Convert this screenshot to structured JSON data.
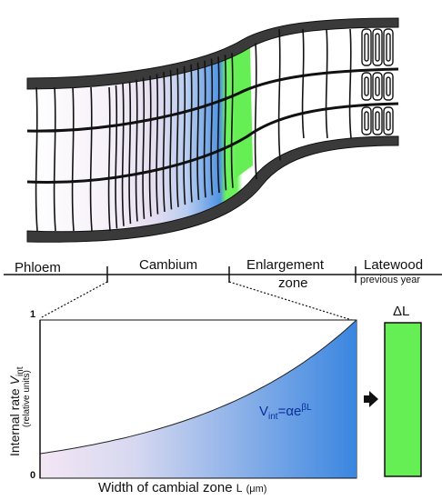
{
  "zones": {
    "phloem": "Phloem",
    "cambium": "Cambium",
    "enlargement_line1": "Enlargement",
    "enlargement_line2": "zone",
    "latewood": "Latewood",
    "latewood_sub": "previous year"
  },
  "plot": {
    "y_axis_label_main": "Internal rate",
    "y_axis_label_var": "V",
    "y_axis_label_var_sub": "int",
    "y_axis_label_sub": "(relative units)",
    "y_tick_top": "1",
    "y_tick_bottom": "0",
    "x_axis_label_main": "Width of cambial zone",
    "x_axis_label_var": "L",
    "x_axis_label_unit": "(μm)",
    "formula_lhs": "V",
    "formula_lhs_sub": "int",
    "formula_eq": "=αe",
    "formula_exp": "βL"
  },
  "delta_box_label": "ΔL",
  "colors": {
    "cambium_blue": "#4a8fe0",
    "enlargement_green": "#66ee55",
    "phloem_pink": "#f0e4f4",
    "ink": "#111111"
  }
}
